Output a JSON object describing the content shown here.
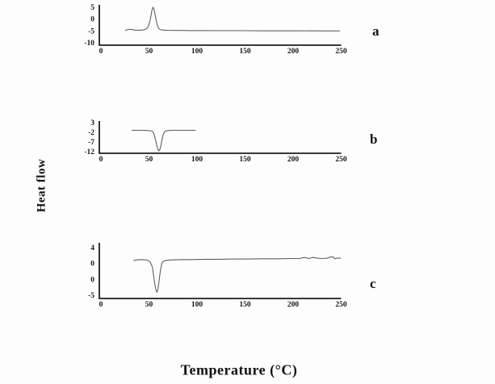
{
  "figure": {
    "ylabel": "Heat flow",
    "xlabel": "Temperature (°C)",
    "background": "#fdfdfd",
    "axis_color": "#1c1c1c",
    "curve_color": "#606060",
    "text_color": "#121212"
  },
  "chart_data": [
    {
      "type": "line",
      "panel_label": "a",
      "xlabel": "Temperature (°C)",
      "ylabel": "Heat flow",
      "grid": false,
      "legend": null,
      "xlim": [
        0,
        250
      ],
      "x_ticks": [
        "0",
        "50",
        "100",
        "150",
        "200",
        "250"
      ],
      "y_ticks": [
        "5",
        "0",
        "-5",
        "-10"
      ],
      "y_axis_top_value": 5,
      "y_axis_bottom_value": -10,
      "annotation": "flat baseline near -4.5 with sharp upward peak at ~55 °C reaching ~5.4",
      "points": [
        [
          27,
          -4.4
        ],
        [
          29,
          -4.2
        ],
        [
          31,
          -4.0
        ],
        [
          33,
          -4.0
        ],
        [
          35,
          -4.15
        ],
        [
          37,
          -4.3
        ],
        [
          40,
          -4.35
        ],
        [
          43,
          -4.35
        ],
        [
          46,
          -4.25
        ],
        [
          48,
          -4.0
        ],
        [
          50,
          -3.4
        ],
        [
          51,
          -2.7
        ],
        [
          52,
          -1.5
        ],
        [
          53,
          0.2
        ],
        [
          54,
          2.4
        ],
        [
          55,
          4.4
        ],
        [
          56,
          5.4
        ],
        [
          57,
          4.5
        ],
        [
          58,
          2.4
        ],
        [
          59,
          0.2
        ],
        [
          60,
          -1.7
        ],
        [
          61,
          -3.0
        ],
        [
          62,
          -3.7
        ],
        [
          63,
          -4.05
        ],
        [
          65,
          -4.25
        ],
        [
          68,
          -4.35
        ],
        [
          72,
          -4.4
        ],
        [
          78,
          -4.45
        ],
        [
          85,
          -4.45
        ],
        [
          95,
          -4.5
        ],
        [
          110,
          -4.5
        ],
        [
          130,
          -4.55
        ],
        [
          150,
          -4.55
        ],
        [
          170,
          -4.6
        ],
        [
          190,
          -4.6
        ],
        [
          210,
          -4.6
        ],
        [
          230,
          -4.65
        ],
        [
          250,
          -4.65
        ]
      ]
    },
    {
      "type": "line",
      "panel_label": "b",
      "xlabel": "Temperature (°C)",
      "ylabel": "Heat flow",
      "grid": false,
      "legend": null,
      "xlim": [
        0,
        250
      ],
      "x_ticks": [
        "0",
        "50",
        "100",
        "150",
        "200",
        "250"
      ],
      "y_ticks": [
        "3",
        "-2",
        "-7",
        "-12"
      ],
      "y_axis_top_value": 3,
      "y_axis_bottom_value": -12,
      "annotation": "curve spans ~34–100 °C, baseline near -0.6 with sharp downward peak at ~62 °C reaching ~-11.2",
      "points": [
        [
          34,
          -0.6
        ],
        [
          38,
          -0.55
        ],
        [
          42,
          -0.55
        ],
        [
          46,
          -0.6
        ],
        [
          50,
          -0.65
        ],
        [
          53,
          -0.75
        ],
        [
          55,
          -1.0
        ],
        [
          56,
          -1.5
        ],
        [
          57,
          -2.6
        ],
        [
          58,
          -4.4
        ],
        [
          59,
          -6.6
        ],
        [
          60,
          -8.8
        ],
        [
          61,
          -10.4
        ],
        [
          62,
          -11.2
        ],
        [
          63,
          -10.5
        ],
        [
          64,
          -8.6
        ],
        [
          65,
          -6.0
        ],
        [
          66,
          -3.7
        ],
        [
          67,
          -2.1
        ],
        [
          68,
          -1.3
        ],
        [
          69,
          -0.9
        ],
        [
          71,
          -0.7
        ],
        [
          74,
          -0.6
        ],
        [
          78,
          -0.55
        ],
        [
          84,
          -0.55
        ],
        [
          92,
          -0.55
        ],
        [
          100,
          -0.55
        ]
      ]
    },
    {
      "type": "line",
      "panel_label": "c",
      "xlabel": "Temperature (°C)",
      "ylabel": "Heat flow",
      "grid": false,
      "legend": null,
      "xlim": [
        0,
        250
      ],
      "x_ticks": [
        "0",
        "50",
        "100",
        "150",
        "200",
        "250"
      ],
      "y_ticks": [
        "4",
        "0",
        "0",
        "-5"
      ],
      "y_axis_top_value": 4,
      "y_axis_bottom_value": -5,
      "annotation": "baseline near +1.8 with sharp downward peak at ~60 °C reaching ~-4.3, slight upward drift and small fluctuations near 215–245 °C",
      "points": [
        [
          36,
          1.75
        ],
        [
          40,
          1.85
        ],
        [
          44,
          1.9
        ],
        [
          48,
          1.85
        ],
        [
          51,
          1.7
        ],
        [
          53,
          1.4
        ],
        [
          55,
          0.6
        ],
        [
          56,
          -0.4
        ],
        [
          57,
          -1.8
        ],
        [
          58,
          -3.0
        ],
        [
          59,
          -3.9
        ],
        [
          60,
          -4.3
        ],
        [
          61,
          -3.7
        ],
        [
          62,
          -2.4
        ],
        [
          63,
          -0.9
        ],
        [
          64,
          0.3
        ],
        [
          65,
          1.1
        ],
        [
          66,
          1.5
        ],
        [
          68,
          1.7
        ],
        [
          72,
          1.8
        ],
        [
          78,
          1.85
        ],
        [
          86,
          1.9
        ],
        [
          95,
          1.9
        ],
        [
          110,
          1.95
        ],
        [
          125,
          1.95
        ],
        [
          140,
          2.0
        ],
        [
          155,
          2.0
        ],
        [
          170,
          2.05
        ],
        [
          185,
          2.05
        ],
        [
          200,
          2.1
        ],
        [
          208,
          2.1
        ],
        [
          214,
          2.3
        ],
        [
          218,
          2.1
        ],
        [
          222,
          2.3
        ],
        [
          227,
          2.15
        ],
        [
          232,
          2.1
        ],
        [
          237,
          2.15
        ],
        [
          240,
          2.35
        ],
        [
          243,
          2.45
        ],
        [
          245,
          2.05
        ],
        [
          248,
          2.2
        ],
        [
          251,
          2.15
        ]
      ]
    }
  ]
}
